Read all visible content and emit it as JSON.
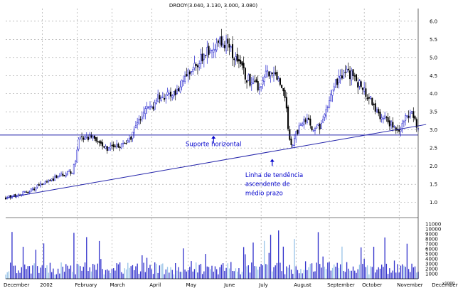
{
  "chart_data": {
    "type": "candlestick",
    "title": "DROOY(3.040, 3.130, 3.000, 3.080)",
    "price_axis": {
      "ylim": [
        0.6,
        6.35
      ],
      "ticks": [
        "1.0",
        "1.5",
        "2.0",
        "2.5",
        "3.0",
        "3.5",
        "4.0",
        "4.5",
        "5.0",
        "5.5",
        "6.0"
      ]
    },
    "volume_axis": {
      "ylim": [
        0,
        12000
      ],
      "ticks": [
        "1000",
        "2000",
        "3000",
        "4000",
        "5000",
        "6000",
        "7000",
        "8000",
        "9000",
        "10000",
        "11000"
      ],
      "unit_label": "x1000"
    },
    "x_axis": {
      "labels": [
        "December",
        "2002",
        "February",
        "March",
        "April",
        "May",
        "June",
        "July",
        "August",
        "September",
        "October",
        "November",
        "December"
      ],
      "domain": [
        0,
        260
      ],
      "positions": [
        0,
        23,
        45,
        67,
        92,
        115,
        139,
        161,
        183,
        204,
        226,
        248,
        270
      ]
    },
    "grid": true,
    "price_series": [
      [
        0,
        1.12
      ],
      [
        6,
        1.18
      ],
      [
        12,
        1.28
      ],
      [
        18,
        1.38
      ],
      [
        22,
        1.5
      ],
      [
        26,
        1.55
      ],
      [
        30,
        1.65
      ],
      [
        34,
        1.72
      ],
      [
        38,
        1.8
      ],
      [
        42,
        1.85
      ],
      [
        44,
        2.1
      ],
      [
        46,
        2.7
      ],
      [
        48,
        2.8
      ],
      [
        50,
        2.85
      ],
      [
        52,
        2.78
      ],
      [
        56,
        2.8
      ],
      [
        60,
        2.6
      ],
      [
        64,
        2.5
      ],
      [
        67,
        2.6
      ],
      [
        72,
        2.55
      ],
      [
        76,
        2.55
      ],
      [
        80,
        2.85
      ],
      [
        84,
        3.25
      ],
      [
        88,
        3.55
      ],
      [
        92,
        3.65
      ],
      [
        96,
        3.85
      ],
      [
        100,
        3.9
      ],
      [
        104,
        3.95
      ],
      [
        108,
        4.0
      ],
      [
        112,
        4.3
      ],
      [
        115,
        4.5
      ],
      [
        120,
        4.8
      ],
      [
        124,
        5.0
      ],
      [
        128,
        5.15
      ],
      [
        132,
        5.25
      ],
      [
        136,
        5.4
      ],
      [
        139,
        5.45
      ],
      [
        141,
        5.2
      ],
      [
        144,
        4.95
      ],
      [
        148,
        4.7
      ],
      [
        152,
        4.45
      ],
      [
        156,
        4.3
      ],
      [
        160,
        4.1
      ],
      [
        164,
        4.5
      ],
      [
        168,
        4.6
      ],
      [
        172,
        4.3
      ],
      [
        176,
        3.9
      ],
      [
        178,
        3.1
      ],
      [
        180,
        2.55
      ],
      [
        183,
        2.9
      ],
      [
        186,
        3.1
      ],
      [
        190,
        3.3
      ],
      [
        194,
        2.95
      ],
      [
        198,
        3.1
      ],
      [
        202,
        3.5
      ],
      [
        206,
        4.1
      ],
      [
        210,
        4.45
      ],
      [
        214,
        4.55
      ],
      [
        218,
        4.5
      ],
      [
        222,
        4.3
      ],
      [
        226,
        4.1
      ],
      [
        230,
        3.85
      ],
      [
        234,
        3.5
      ],
      [
        238,
        3.3
      ],
      [
        242,
        3.2
      ],
      [
        245,
        3.05
      ],
      [
        248,
        2.95
      ],
      [
        251,
        3.2
      ],
      [
        254,
        3.45
      ],
      [
        256,
        3.55
      ],
      [
        258,
        3.25
      ],
      [
        260,
        3.08
      ]
    ],
    "reference_lines": [
      {
        "type": "horizontal",
        "value": 2.86
      },
      {
        "type": "trend",
        "from": [
          0,
          1.12
        ],
        "to": [
          265,
          3.15
        ]
      }
    ],
    "annotations": [
      {
        "text": "Suporte horizontal",
        "x": 131,
        "y": 2.55,
        "arrow_to": [
          131,
          2.86
        ]
      },
      {
        "text": "Linha de tendência",
        "x": 151,
        "y": 1.7,
        "arrow_to": [
          168,
          2.22
        ]
      },
      {
        "text": "ascendente de",
        "x": 151,
        "y": 1.45
      },
      {
        "text": "médio prazo",
        "x": 151,
        "y": 1.2
      }
    ]
  },
  "colors": {
    "up": "#2020cc",
    "down": "#000000",
    "line": "#2424aa",
    "grid": "#9a9a9a",
    "annotation": "#0000cc",
    "volume": "#3333cc",
    "volume_alt": "#9ac4e8"
  }
}
